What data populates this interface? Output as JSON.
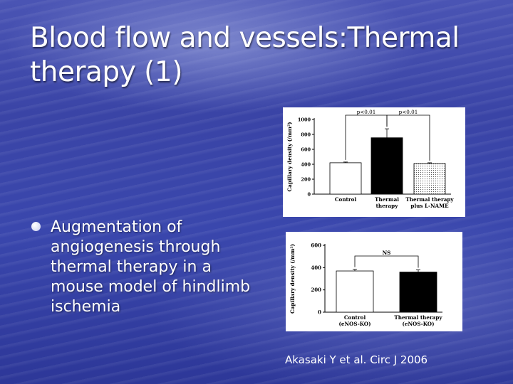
{
  "slide": {
    "title": "Blood flow and vessels:Thermal therapy (1)",
    "bullet": "Augmentation of angiogenesis through thermal therapy in a mouse model of hindlimb ischemia",
    "citation": "Akasaki Y et al. Circ J 2006"
  },
  "chart_data": [
    {
      "type": "bar",
      "ylabel": "Capillary density (/mm²)",
      "ylim": [
        0,
        1000
      ],
      "yticks": [
        "0",
        "200",
        "400",
        "600",
        "800",
        "1000"
      ],
      "categories": [
        {
          "line1": "Control",
          "line2": ""
        },
        {
          "line1": "Thermal",
          "line2": "therapy"
        },
        {
          "line1": "Thermal therapy",
          "line2": "plus L-NAME"
        }
      ],
      "values": [
        420,
        755,
        410
      ],
      "errors": [
        10,
        120,
        10
      ],
      "fills": [
        "#ffffff",
        "#000000",
        "dotted"
      ],
      "annotations": [
        {
          "text": "p<0.01",
          "from": 0,
          "to": 1
        },
        {
          "text": "p<0.01",
          "from": 1,
          "to": 2
        }
      ]
    },
    {
      "type": "bar",
      "ylabel": "Capillary density (/mm²)",
      "ylim": [
        0,
        600
      ],
      "yticks": [
        "0",
        "200",
        "400",
        "600"
      ],
      "categories": [
        {
          "line1": "Control",
          "line2": "(eNOS-KO)"
        },
        {
          "line1": "Thermal therapy",
          "line2": "(eNOS-KO)"
        }
      ],
      "values": [
        370,
        360
      ],
      "errors": [
        15,
        20
      ],
      "fills": [
        "#ffffff",
        "#000000"
      ],
      "annotations": [
        {
          "text": "NS",
          "from": 0,
          "to": 1
        }
      ]
    }
  ]
}
